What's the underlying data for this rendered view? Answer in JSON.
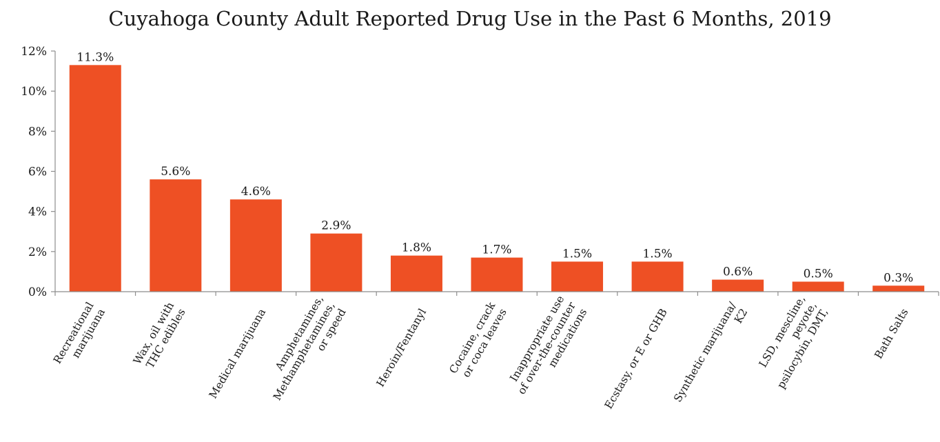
{
  "chart_data": {
    "type": "bar",
    "title": "Cuyahoga County Adult Reported Drug Use in the Past 6 Months, 2019",
    "xlabel": "",
    "ylabel": "",
    "categories": [
      [
        "Recreational",
        "marijuana"
      ],
      [
        "Wax, oil with",
        "THC edibles"
      ],
      [
        "Medical marijuana"
      ],
      [
        "Amphetamines,",
        "Methamphetamines,",
        "or speed"
      ],
      [
        "Heroin/Fentanyl"
      ],
      [
        "Cocaine, crack",
        "or coca leaves"
      ],
      [
        "Inappropriate use",
        "of over-the-counter",
        "medications"
      ],
      [
        "Ecstasy, or E or GHB"
      ],
      [
        "Synthetic marijuana/",
        "K2"
      ],
      [
        "LSD, mescline,",
        "peyote,",
        "psilocybin, DMT,"
      ],
      [
        "Bath Salts"
      ]
    ],
    "values": [
      11.3,
      5.6,
      4.6,
      2.9,
      1.8,
      1.7,
      1.5,
      1.5,
      0.6,
      0.5,
      0.3
    ],
    "data_labels": [
      "11.3%",
      "5.6%",
      "4.6%",
      "2.9%",
      "1.8%",
      "1.7%",
      "1.5%",
      "1.5%",
      "0.6%",
      "0.5%",
      "0.3%"
    ],
    "ylim": [
      0,
      12
    ],
    "yticks": [
      0,
      2,
      4,
      6,
      8,
      10,
      12
    ],
    "ytick_labels": [
      "0%",
      "2%",
      "4%",
      "6%",
      "8%",
      "10%",
      "12%"
    ],
    "grid": false,
    "legend": "none",
    "bar_color": "#EE5024",
    "axis_color": "#8c8c8c"
  }
}
